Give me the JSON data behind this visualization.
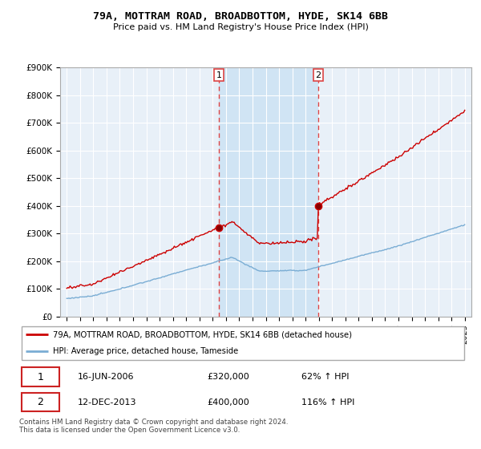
{
  "title": "79A, MOTTRAM ROAD, BROADBOTTOM, HYDE, SK14 6BB",
  "subtitle": "Price paid vs. HM Land Registry's House Price Index (HPI)",
  "legend_line1": "79A, MOTTRAM ROAD, BROADBOTTOM, HYDE, SK14 6BB (detached house)",
  "legend_line2": "HPI: Average price, detached house, Tameside",
  "transaction1_date": "16-JUN-2006",
  "transaction1_price": "£320,000",
  "transaction1_hpi": "62% ↑ HPI",
  "transaction2_date": "12-DEC-2013",
  "transaction2_price": "£400,000",
  "transaction2_hpi": "116% ↑ HPI",
  "footer": "Contains HM Land Registry data © Crown copyright and database right 2024.\nThis data is licensed under the Open Government Licence v3.0.",
  "red_color": "#cc0000",
  "blue_color": "#7aadd4",
  "dashed_color": "#dd4444",
  "bg_plot": "#e8f0f8",
  "bg_band": "#d0e4f4",
  "ylim": [
    0,
    900000
  ],
  "yticks": [
    0,
    100000,
    200000,
    300000,
    400000,
    500000,
    600000,
    700000,
    800000,
    900000
  ],
  "ytick_labels": [
    "£0",
    "£100K",
    "£200K",
    "£300K",
    "£400K",
    "£500K",
    "£600K",
    "£700K",
    "£800K",
    "£900K"
  ],
  "t1": 2006.46,
  "t2": 2013.95,
  "t1_price": 320000,
  "t2_price": 400000
}
